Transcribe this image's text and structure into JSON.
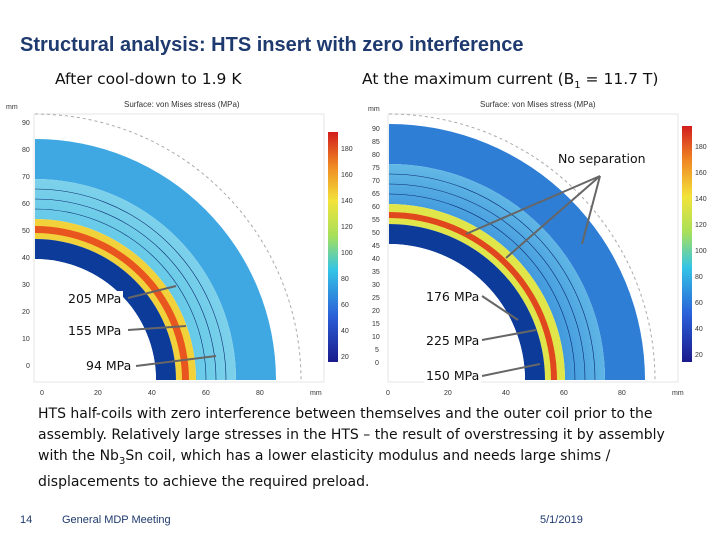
{
  "title": "Structural analysis: HTS insert with zero interference",
  "panels": {
    "left_heading": "After cool-down to 1.9 K",
    "right_heading_prefix": "At the maximum current (B",
    "right_heading_sub": "1",
    "right_heading_suffix": " = 11.7 T)",
    "left_plot_title": "Surface: von Mises stress (MPa)",
    "right_plot_title": "Surface: von Mises stress (MPa)",
    "axis_unit": "mm",
    "left_y_ticks": [
      "90",
      "80",
      "70",
      "60",
      "50",
      "40",
      "30",
      "20",
      "10",
      "0"
    ],
    "right_y_ticks": [
      "90",
      "85",
      "80",
      "75",
      "70",
      "65",
      "60",
      "55",
      "50",
      "45",
      "40",
      "35",
      "30",
      "25",
      "20",
      "15",
      "10",
      "5",
      "0"
    ],
    "x_ticks": [
      "0",
      "20",
      "40",
      "60",
      "80"
    ],
    "left_colorbar_ticks": [
      "180",
      "160",
      "140",
      "120",
      "100",
      "80",
      "60",
      "40",
      "20"
    ],
    "right_colorbar_ticks": [
      "180",
      "160",
      "140",
      "120",
      "100",
      "80",
      "60",
      "40",
      "20"
    ]
  },
  "annotations": {
    "left_top": "205 MPa",
    "left_mid": "155 MPa",
    "left_bottom": "94 MPa",
    "right_top": "176 MPa",
    "right_mid": "225 MPa",
    "right_bottom": "150 MPa",
    "no_separation": "No separation"
  },
  "caption": {
    "part1": "HTS half-coils with zero interference between themselves and the outer coil prior to the assembly. Relatively large stresses in the HTS – the result of overstressing it by assembly with the Nb",
    "sub": "3",
    "part2": "Sn coil, which has a lower elasticity modulus and needs large shims / displacements to achieve the required preload."
  },
  "footer": {
    "page_number": "14",
    "meeting": "General MDP Meeting",
    "date": "5/1/2019"
  }
}
